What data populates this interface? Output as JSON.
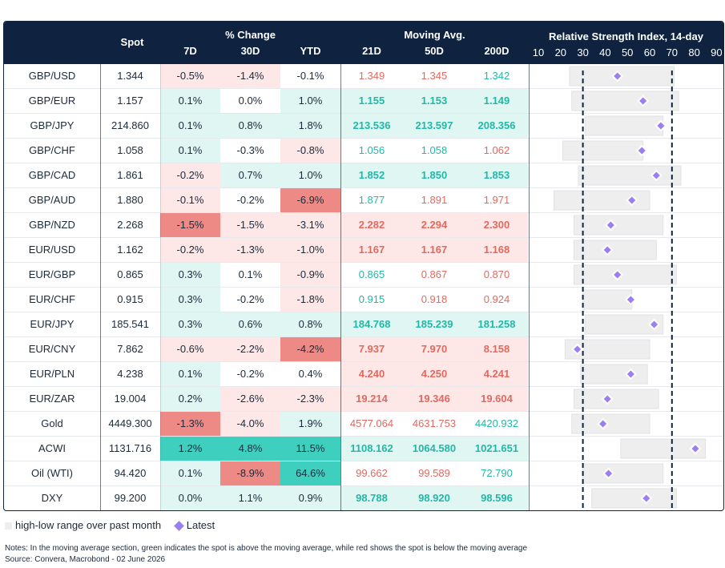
{
  "header": {
    "spot": "Spot",
    "pct_change": "% Change",
    "moving_avg": "Moving Avg.",
    "rsi_title": "Relative Strength Index, 14-day",
    "sub": [
      "7D",
      "30D",
      "YTD",
      "21D",
      "50D",
      "200D"
    ],
    "rsi_ticks": [
      "10",
      "20",
      "30",
      "40",
      "50",
      "60",
      "70",
      "80",
      "90"
    ]
  },
  "colors": {
    "header_bg": "#0f2340",
    "green_strong": "#3ecfbe",
    "green_light": "#e0f6f3",
    "red_strong": "#ee8a86",
    "red_light": "#fde8e7",
    "ma_green_text": "#22b8a5",
    "ma_red_text": "#e06a60",
    "marker": "#9b7ef2",
    "range_bar": "#eeeeee"
  },
  "chart_data": {
    "type": "table",
    "columns": [
      "Spot",
      "7D",
      "30D",
      "YTD",
      "21D",
      "50D",
      "200D",
      "RSI range",
      "RSI latest"
    ],
    "rsi_axis": {
      "min": 10,
      "max": 90,
      "thresholds": [
        30,
        70
      ]
    },
    "rows": [
      {
        "name": "GBP/USD",
        "spot": "1.344",
        "d7": "-0.5%",
        "d30": "-1.4%",
        "ytd": "-0.1%",
        "ma21": "1.349",
        "ma50": "1.345",
        "ma200": "1.342",
        "rsi_low": 24,
        "rsi_high": 71,
        "rsi": 45.5
      },
      {
        "name": "GBP/EUR",
        "spot": "1.157",
        "d7": "0.1%",
        "d30": "0.0%",
        "ytd": "1.0%",
        "ma21": "1.155",
        "ma50": "1.153",
        "ma200": "1.149",
        "rsi_low": 25,
        "rsi_high": 73,
        "rsi": 57
      },
      {
        "name": "GBP/JPY",
        "spot": "214.860",
        "d7": "0.1%",
        "d30": "0.8%",
        "ytd": "1.8%",
        "ma21": "213.536",
        "ma50": "213.597",
        "ma200": "208.356",
        "rsi_low": 31,
        "rsi_high": 66,
        "rsi": 65
      },
      {
        "name": "GBP/CHF",
        "spot": "1.058",
        "d7": "0.1%",
        "d30": "-0.3%",
        "ytd": "-0.8%",
        "ma21": "1.056",
        "ma50": "1.058",
        "ma200": "1.062",
        "rsi_low": 21,
        "rsi_high": 57,
        "rsi": 56.5
      },
      {
        "name": "GBP/CAD",
        "spot": "1.861",
        "d7": "-0.2%",
        "d30": "0.7%",
        "ytd": "1.0%",
        "ma21": "1.852",
        "ma50": "1.850",
        "ma200": "1.853",
        "rsi_low": 28,
        "rsi_high": 74,
        "rsi": 63
      },
      {
        "name": "GBP/AUD",
        "spot": "1.880",
        "d7": "-0.1%",
        "d30": "-0.2%",
        "ytd": "-6.9%",
        "ma21": "1.877",
        "ma50": "1.891",
        "ma200": "1.971",
        "rsi_low": 17,
        "rsi_high": 60,
        "rsi": 52
      },
      {
        "name": "GBP/NZD",
        "spot": "2.268",
        "d7": "-1.5%",
        "d30": "-1.5%",
        "ytd": "-3.1%",
        "ma21": "2.282",
        "ma50": "2.294",
        "ma200": "2.300",
        "rsi_low": 26,
        "rsi_high": 66,
        "rsi": 42.5
      },
      {
        "name": "EUR/USD",
        "spot": "1.162",
        "d7": "-0.2%",
        "d30": "-1.3%",
        "ytd": "-1.0%",
        "ma21": "1.167",
        "ma50": "1.167",
        "ma200": "1.168",
        "rsi_low": 26,
        "rsi_high": 63,
        "rsi": 41
      },
      {
        "name": "EUR/GBP",
        "spot": "0.865",
        "d7": "0.3%",
        "d30": "0.1%",
        "ytd": "-0.9%",
        "ma21": "0.865",
        "ma50": "0.867",
        "ma200": "0.870",
        "rsi_low": 26,
        "rsi_high": 72,
        "rsi": 45.5
      },
      {
        "name": "EUR/CHF",
        "spot": "0.915",
        "d7": "0.3%",
        "d30": "-0.2%",
        "ytd": "-1.8%",
        "ma21": "0.915",
        "ma50": "0.918",
        "ma200": "0.924",
        "rsi_low": 30,
        "rsi_high": 52,
        "rsi": 51.5
      },
      {
        "name": "EUR/JPY",
        "spot": "185.541",
        "d7": "0.3%",
        "d30": "0.6%",
        "ytd": "0.8%",
        "ma21": "184.768",
        "ma50": "185.239",
        "ma200": "181.258",
        "rsi_low": 31,
        "rsi_high": 66,
        "rsi": 62
      },
      {
        "name": "EUR/CNY",
        "spot": "7.862",
        "d7": "-0.6%",
        "d30": "-2.2%",
        "ytd": "-4.2%",
        "ma21": "7.937",
        "ma50": "7.970",
        "ma200": "8.158",
        "rsi_low": 22,
        "rsi_high": 60,
        "rsi": 27.5
      },
      {
        "name": "EUR/PLN",
        "spot": "4.238",
        "d7": "0.1%",
        "d30": "-0.2%",
        "ytd": "0.4%",
        "ma21": "4.240",
        "ma50": "4.250",
        "ma200": "4.241",
        "rsi_low": 29,
        "rsi_high": 59,
        "rsi": 51.5
      },
      {
        "name": "EUR/ZAR",
        "spot": "19.004",
        "d7": "0.2%",
        "d30": "-2.6%",
        "ytd": "-2.3%",
        "ma21": "19.214",
        "ma50": "19.346",
        "ma200": "19.604",
        "rsi_low": 26,
        "rsi_high": 64,
        "rsi": 41
      },
      {
        "name": "Gold",
        "spot": "4449.300",
        "d7": "-1.3%",
        "d30": "-4.0%",
        "ytd": "1.9%",
        "ma21": "4577.064",
        "ma50": "4631.753",
        "ma200": "4420.932",
        "rsi_low": 25,
        "rsi_high": 60,
        "rsi": 39
      },
      {
        "name": "ACWI",
        "spot": "1131.716",
        "d7": "1.2%",
        "d30": "4.8%",
        "ytd": "11.5%",
        "ma21": "1108.162",
        "ma50": "1064.580",
        "ma200": "1021.651",
        "rsi_low": 47,
        "rsi_high": 85,
        "rsi": 80.5
      },
      {
        "name": "Oil (WTI)",
        "spot": "94.420",
        "d7": "0.1%",
        "d30": "-8.9%",
        "ytd": "64.6%",
        "ma21": "99.662",
        "ma50": "99.589",
        "ma200": "72.790",
        "rsi_low": 30,
        "rsi_high": 66,
        "rsi": 41.5
      },
      {
        "name": "DXY",
        "spot": "99.200",
        "d7": "0.0%",
        "d30": "1.1%",
        "ytd": "0.9%",
        "ma21": "98.788",
        "ma50": "98.920",
        "ma200": "98.596",
        "rsi_low": 34,
        "rsi_high": 72,
        "rsi": 58.5
      }
    ],
    "legend": [
      "high-low range over past month",
      "Latest"
    ],
    "notes": "Notes: In the moving average section, green indicates the spot is above the moving average, while red shows the spot is below the moving average",
    "source": "Source: Convera, Macrobond - 02 June 2026"
  }
}
